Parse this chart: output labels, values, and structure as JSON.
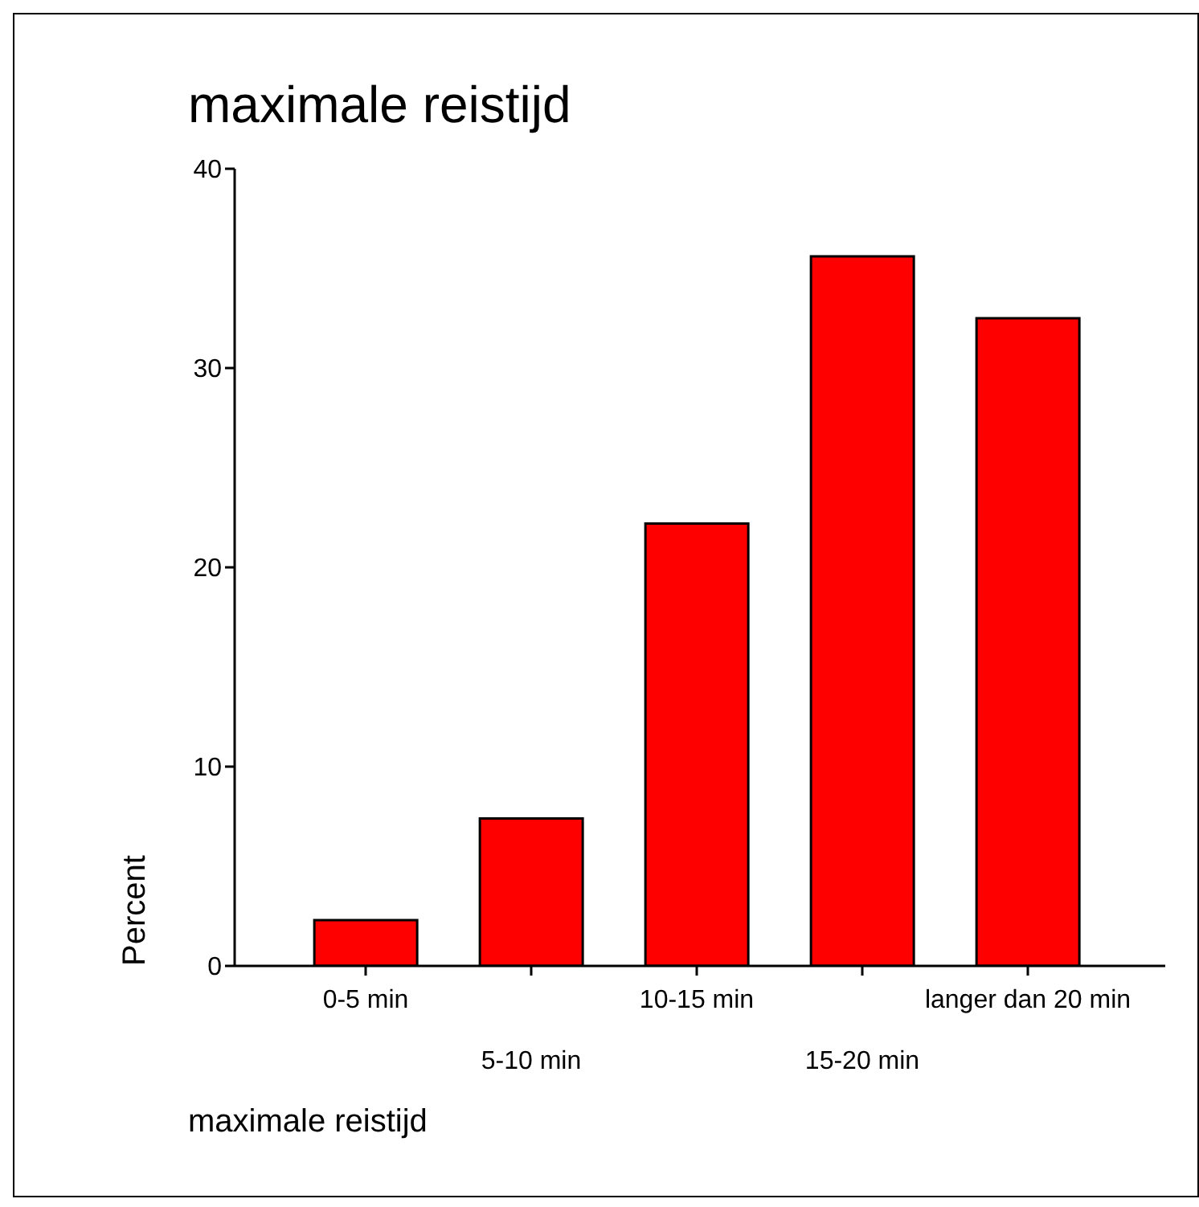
{
  "chart_data": {
    "type": "bar",
    "title": "maximale reistijd",
    "xlabel": "maximale reistijd",
    "ylabel": "Percent",
    "categories": [
      "0-5 min",
      "5-10 min",
      "10-15 min",
      "15-20 min",
      "langer dan 20 min"
    ],
    "values": [
      2.3,
      7.4,
      22.2,
      35.6,
      32.5
    ],
    "color": "#ff0000",
    "ylim": [
      0,
      40
    ],
    "yticks": [
      0,
      10,
      20,
      30,
      40
    ],
    "grid": false,
    "legend": false
  }
}
